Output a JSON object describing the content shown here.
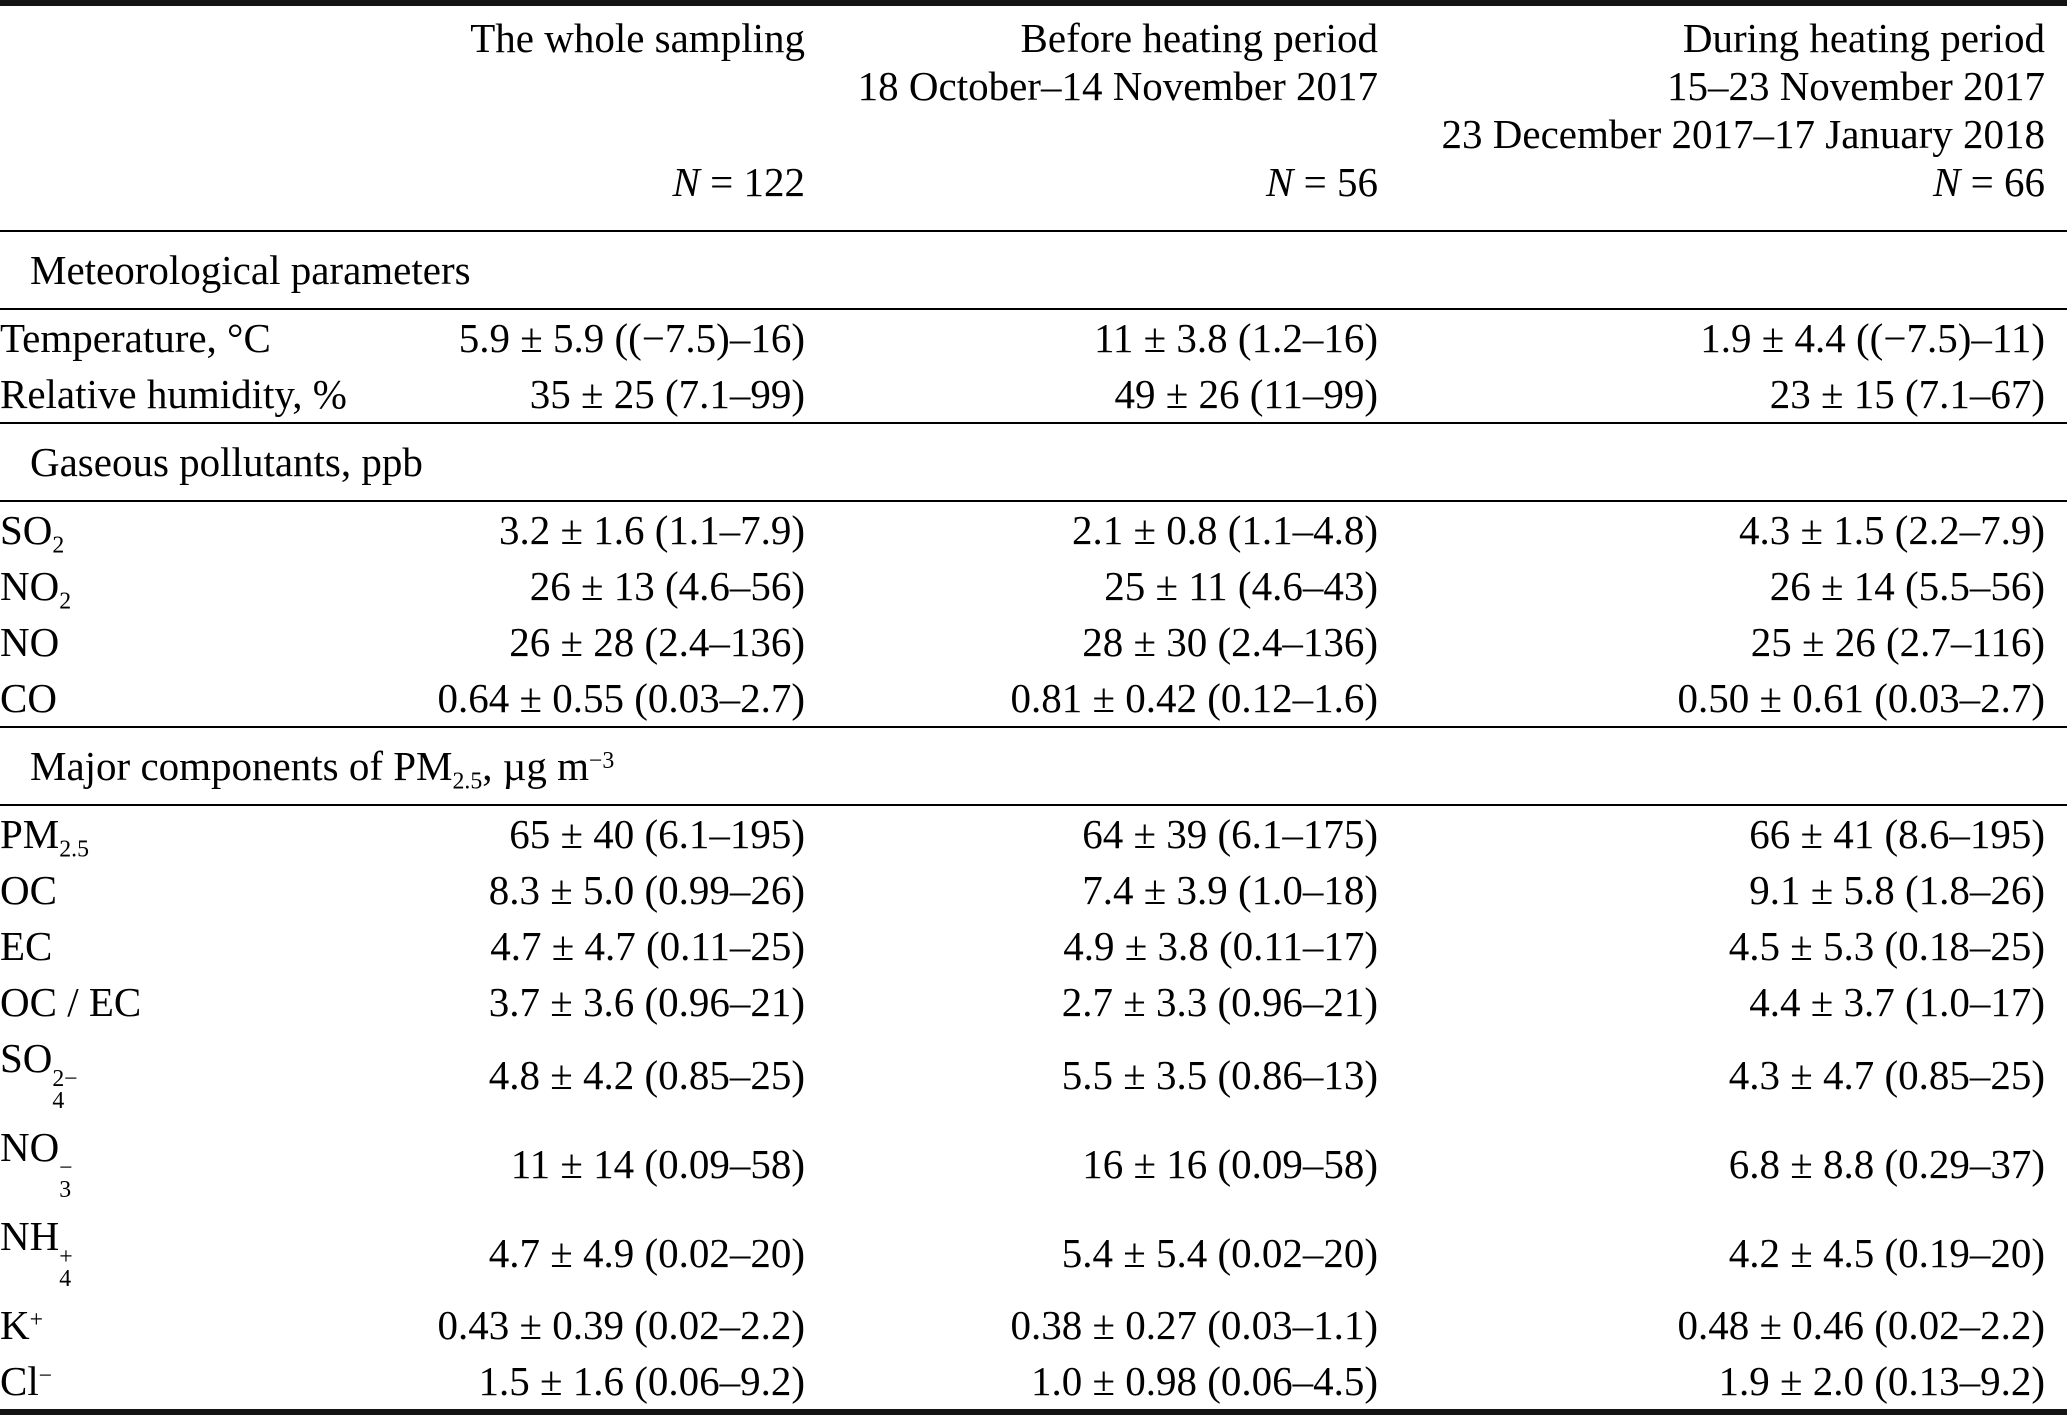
{
  "table": {
    "columns": [
      {
        "title_lines": [
          "The whole sampling"
        ],
        "n_label_html": "<i>N</i> = 122"
      },
      {
        "title_lines": [
          "Before heating period",
          "18 October–14 November 2017"
        ],
        "n_label_html": "<i>N</i> = 56"
      },
      {
        "title_lines": [
          "During heating period",
          "15–23 November 2017",
          "23 December 2017–17 January 2018"
        ],
        "n_label_html": "<i>N</i> = 66"
      }
    ],
    "sections": [
      {
        "header_html": "Meteorological parameters",
        "rows": [
          {
            "label_html": "Temperature, °C",
            "values": [
              "5.9 ± 5.9 ((−7.5)–16)",
              "11 ± 3.8 (1.2–16)",
              "1.9 ± 4.4 ((−7.5)–11)"
            ]
          },
          {
            "label_html": "Relative humidity, %",
            "values": [
              "35 ± 25 (7.1–99)",
              "49 ± 26 (11–99)",
              "23 ± 15 (7.1–67)"
            ]
          }
        ]
      },
      {
        "header_html": "Gaseous pollutants, ppb",
        "rows": [
          {
            "label_html": "SO<sub>2</sub>",
            "values": [
              "3.2 ± 1.6 (1.1–7.9)",
              "2.1 ± 0.8 (1.1–4.8)",
              "4.3 ± 1.5 (2.2–7.9)"
            ]
          },
          {
            "label_html": "NO<sub>2</sub>",
            "values": [
              "26 ± 13 (4.6–56)",
              "25 ± 11 (4.6–43)",
              "26 ± 14 (5.5–56)"
            ]
          },
          {
            "label_html": "NO",
            "values": [
              "26 ± 28 (2.4–136)",
              "28 ± 30 (2.4–136)",
              "25 ± 26 (2.7–116)"
            ]
          },
          {
            "label_html": "CO",
            "values": [
              "0.64 ± 0.55 (0.03–2.7)",
              "0.81 ± 0.42 (0.12–1.6)",
              "0.50 ± 0.61 (0.03–2.7)"
            ]
          }
        ]
      },
      {
        "header_html": "Major components of PM<sub>2.5</sub>, µg m<sup>−3</sup>",
        "rows": [
          {
            "label_html": "PM<sub>2.5</sub>",
            "values": [
              "65 ± 40 (6.1–195)",
              "64 ± 39 (6.1–175)",
              "66 ± 41 (8.6–195)"
            ]
          },
          {
            "label_html": "OC",
            "values": [
              "8.3 ± 5.0 (0.99–26)",
              "7.4 ± 3.9 (1.0–18)",
              "9.1 ± 5.8 (1.8–26)"
            ]
          },
          {
            "label_html": "EC",
            "values": [
              "4.7 ± 4.7 (0.11–25)",
              "4.9 ± 3.8 (0.11–17)",
              "4.5 ± 5.3 (0.18–25)"
            ]
          },
          {
            "label_html": "OC / EC",
            "values": [
              "3.7 ± 3.6 (0.96–21)",
              "2.7 ± 3.3 (0.96–21)",
              "4.4 ± 3.7 (1.0–17)"
            ]
          },
          {
            "label_html": "SO<span class='stk'><span class='t'>2−</span><span class='b'>4</span></span>",
            "values": [
              "4.8 ± 4.2 (0.85–25)",
              "5.5 ± 3.5 (0.86–13)",
              "4.3 ± 4.7 (0.85–25)"
            ]
          },
          {
            "label_html": "NO<span class='stk'><span class='t'>−</span><span class='b'>3</span></span>",
            "values": [
              "11 ± 14 (0.09–58)",
              "16 ± 16 (0.09–58)",
              "6.8 ± 8.8 (0.29–37)"
            ]
          },
          {
            "label_html": "NH<span class='stk'><span class='t'>+</span><span class='b'>4</span></span>",
            "values": [
              "4.7 ± 4.9 (0.02–20)",
              "5.4 ± 5.4 (0.02–20)",
              "4.2 ± 4.5 (0.19–20)"
            ]
          },
          {
            "label_html": "K<sup>+</sup>",
            "values": [
              "0.43 ± 0.39 (0.02–2.2)",
              "0.38 ± 0.27 (0.03–1.1)",
              "0.48 ± 0.46 (0.02–2.2)"
            ]
          },
          {
            "label_html": "Cl<sup>−</sup>",
            "values": [
              "1.5 ± 1.6 (0.06–9.2)",
              "1.0 ± 0.98 (0.06–4.5)",
              "1.9 ± 2.0 (0.13–9.2)"
            ]
          }
        ]
      }
    ]
  }
}
